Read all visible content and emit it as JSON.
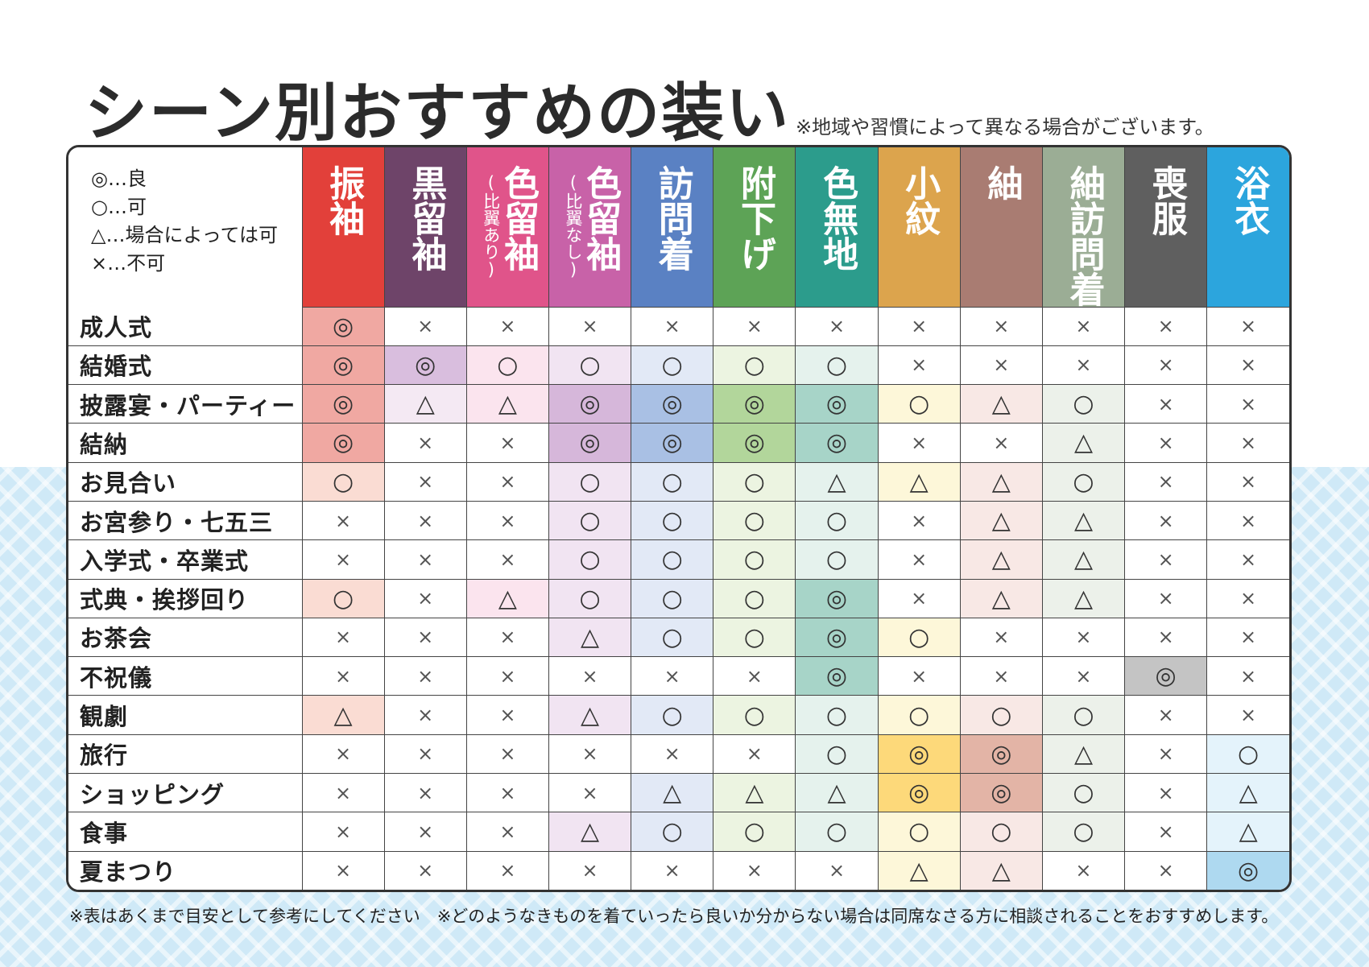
{
  "title": "シーン別おすすめの装い",
  "note_top": "※地域や習慣によって異なる場合がございます。",
  "legend": [
    "◎…良",
    "○…可",
    "△…場合によっては可",
    "×…不可"
  ],
  "columns": [
    {
      "label": "振袖",
      "sub": "",
      "color": "#e2403a",
      "tint": "#f4b5ad"
    },
    {
      "label": "黒留袖",
      "sub": "",
      "color": "#6e4469",
      "tint": "#ead2e6"
    },
    {
      "label": "色留袖",
      "sub": "(比翼あり)",
      "color": "#e0548a",
      "tint": "#f7d3e2"
    },
    {
      "label": "色留袖",
      "sub": "(比翼なし)",
      "color": "#c862a8",
      "tint": "#e6cfe7"
    },
    {
      "label": "訪問着",
      "sub": "",
      "color": "#5a81c3",
      "tint": "#cad6ec"
    },
    {
      "label": "附下げ",
      "sub": "",
      "color": "#5da356",
      "tint": "#dbebc3"
    },
    {
      "label": "色無地",
      "sub": "",
      "color": "#2c9c8c",
      "tint": "#d3eadf"
    },
    {
      "label": "小紋",
      "sub": "",
      "color": "#dca44d",
      "tint": "#faf0bd"
    },
    {
      "label": "紬",
      "sub": "",
      "color": "#a97c72",
      "tint": "#f3dbd6"
    },
    {
      "label": "紬訪問着",
      "sub": "",
      "color": "#9bad95",
      "tint": "#dde6d8"
    },
    {
      "label": "喪服",
      "sub": "",
      "color": "#5f5f5f",
      "tint": "#d0d0d0"
    },
    {
      "label": "浴衣",
      "sub": "",
      "color": "#2ca5dd",
      "tint": "#cce8f6"
    }
  ],
  "colors": {
    "strong": [
      "#f0a8a2",
      "#d9bede",
      "#f4c4d6",
      "#d6b7da",
      "#a9c0e4",
      "#b2d69b",
      "#a7d4c8",
      "#fdd97a",
      "#e3b4a6",
      "#c7d5c1",
      "#c4c4c4",
      "#aed9f0"
    ],
    "light": [
      "#fadcd3",
      "#f4e9f3",
      "#fbe4ee",
      "#f1e4f2",
      "#e2e9f6",
      "#ecf4e1",
      "#e5f2ed",
      "#fdf7d9",
      "#f8e8e5",
      "#ecf1ea",
      "#e6e6e6",
      "#e4f3fb"
    ]
  },
  "rows": [
    {
      "scene": "成人式",
      "cells": [
        "◎",
        "×",
        "×",
        "×",
        "×",
        "×",
        "×",
        "×",
        "×",
        "×",
        "×",
        "×"
      ]
    },
    {
      "scene": "結婚式",
      "cells": [
        "◎",
        "◎",
        "○",
        "○",
        "○",
        "○",
        "○",
        "×",
        "×",
        "×",
        "×",
        "×"
      ]
    },
    {
      "scene": "披露宴・パーティー",
      "cells": [
        "◎",
        "△",
        "△",
        "◎",
        "◎",
        "◎",
        "◎",
        "○",
        "△",
        "○",
        "×",
        "×"
      ]
    },
    {
      "scene": "結納",
      "cells": [
        "◎",
        "×",
        "×",
        "◎",
        "◎",
        "◎",
        "◎",
        "×",
        "×",
        "△",
        "×",
        "×"
      ]
    },
    {
      "scene": "お見合い",
      "cells": [
        "○",
        "×",
        "×",
        "○",
        "○",
        "○",
        "△",
        "△",
        "△",
        "○",
        "×",
        "×"
      ]
    },
    {
      "scene": "お宮参り・七五三",
      "cells": [
        "×",
        "×",
        "×",
        "○",
        "○",
        "○",
        "○",
        "×",
        "△",
        "△",
        "×",
        "×"
      ]
    },
    {
      "scene": "入学式・卒業式",
      "cells": [
        "×",
        "×",
        "×",
        "○",
        "○",
        "○",
        "○",
        "×",
        "△",
        "△",
        "×",
        "×"
      ]
    },
    {
      "scene": "式典・挨拶回り",
      "cells": [
        "○",
        "×",
        "△",
        "○",
        "○",
        "○",
        "◎",
        "×",
        "△",
        "△",
        "×",
        "×"
      ]
    },
    {
      "scene": "お茶会",
      "cells": [
        "×",
        "×",
        "×",
        "△",
        "○",
        "○",
        "◎",
        "○",
        "×",
        "×",
        "×",
        "×"
      ]
    },
    {
      "scene": "不祝儀",
      "cells": [
        "×",
        "×",
        "×",
        "×",
        "×",
        "×",
        "◎",
        "×",
        "×",
        "×",
        "◎",
        "×"
      ]
    },
    {
      "scene": "観劇",
      "cells": [
        "△",
        "×",
        "×",
        "△",
        "○",
        "○",
        "○",
        "○",
        "○",
        "○",
        "×",
        "×"
      ]
    },
    {
      "scene": "旅行",
      "cells": [
        "×",
        "×",
        "×",
        "×",
        "×",
        "×",
        "○",
        "◎",
        "◎",
        "△",
        "×",
        "○"
      ]
    },
    {
      "scene": "ショッピング",
      "cells": [
        "×",
        "×",
        "×",
        "×",
        "△",
        "△",
        "△",
        "◎",
        "◎",
        "○",
        "×",
        "△"
      ]
    },
    {
      "scene": "食事",
      "cells": [
        "×",
        "×",
        "×",
        "△",
        "○",
        "○",
        "○",
        "○",
        "○",
        "○",
        "×",
        "△"
      ]
    },
    {
      "scene": "夏まつり",
      "cells": [
        "×",
        "×",
        "×",
        "×",
        "×",
        "×",
        "×",
        "△",
        "△",
        "×",
        "×",
        "◎"
      ]
    }
  ],
  "footer_note": "※表はあくまで目安として参考にしてください　※どのようなきものを着ていったら良いか分からない場合は同席なさる方に相談されることをおすすめします。"
}
